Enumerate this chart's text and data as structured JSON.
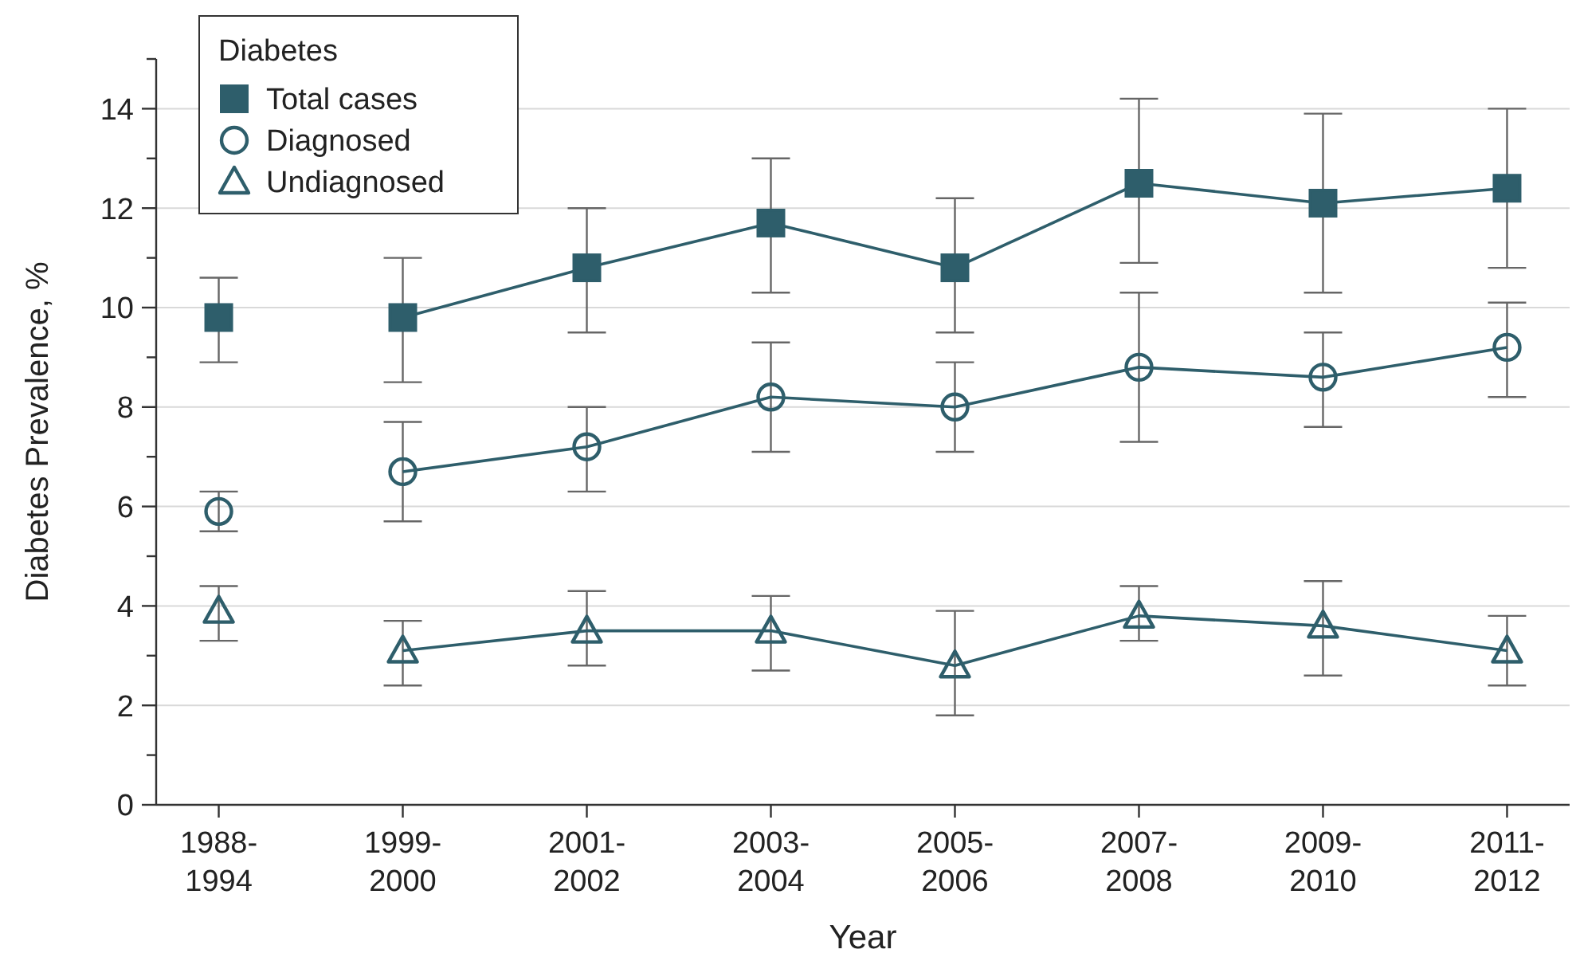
{
  "chart_data": {
    "type": "line",
    "xlabel": "Year",
    "ylabel": "Diabetes Prevalence, %",
    "legend_title": "Diabetes",
    "legend": "top left",
    "grid": "y",
    "categories": [
      "1988-\n1994",
      "1999-\n2000",
      "2001-\n2002",
      "2003-\n2004",
      "2005-\n2006",
      "2007-\n2008",
      "2009-\n2010",
      "2011-\n2012"
    ],
    "ylim": [
      0,
      15
    ],
    "yticks": [
      0,
      {
        "value": 1,
        "label": null
      },
      2,
      {
        "value": 3,
        "label": null
      },
      4,
      {
        "value": 5,
        "label": null
      },
      6,
      {
        "value": 7,
        "label": null
      },
      8,
      {
        "value": 9,
        "label": null
      },
      10,
      {
        "value": 11,
        "label": null
      },
      12,
      {
        "value": 13,
        "label": null
      },
      14,
      {
        "value": 15,
        "label": null
      }
    ],
    "series": [
      {
        "name": "Total cases",
        "color": "#2e5e6b",
        "marker": "square",
        "values": [
          null,
          9.8,
          10.8,
          11.7,
          10.8,
          12.5,
          12.1,
          12.4
        ],
        "errors": [
          null,
          [
            8.5,
            11.0
          ],
          [
            9.5,
            12.0
          ],
          [
            10.3,
            13.0
          ],
          [
            9.5,
            12.2
          ],
          [
            10.9,
            14.2
          ],
          [
            10.3,
            13.9
          ],
          [
            10.8,
            14.0
          ]
        ]
      },
      {
        "name": "Diagnosed",
        "color": "#2e5e6b",
        "marker": "circle",
        "values": [
          null,
          6.7,
          7.2,
          8.2,
          8.0,
          8.8,
          8.6,
          9.2
        ],
        "errors": [
          null,
          [
            5.7,
            7.7
          ],
          [
            6.3,
            8.0
          ],
          [
            7.1,
            9.3
          ],
          [
            7.1,
            8.9
          ],
          [
            7.3,
            10.3
          ],
          [
            7.6,
            9.5
          ],
          [
            8.2,
            10.1
          ]
        ]
      },
      {
        "name": "Undiagnosed",
        "color": "#2e5e6b",
        "marker": "triangle",
        "values": [
          null,
          3.1,
          3.5,
          3.5,
          2.8,
          3.8,
          3.6,
          3.1
        ],
        "errors": [
          null,
          [
            2.4,
            3.7
          ],
          [
            2.8,
            4.3
          ],
          [
            2.7,
            4.2
          ],
          [
            1.8,
            3.9
          ],
          [
            3.3,
            4.4
          ],
          [
            2.6,
            4.5
          ],
          [
            2.4,
            3.8
          ]
        ]
      },
      {
        "type": "scatter",
        "color": "#2e5e6b",
        "marker": "square",
        "values": [
          9.8,
          null,
          null,
          null,
          null,
          null,
          null,
          null
        ],
        "errors": [
          [
            8.9,
            10.6
          ],
          null,
          null,
          null,
          null,
          null,
          null,
          null
        ]
      },
      {
        "type": "scatter",
        "color": "#2e5e6b",
        "marker": "circle",
        "values": [
          5.9,
          null,
          null,
          null,
          null,
          null,
          null,
          null
        ],
        "errors": [
          [
            5.5,
            6.3
          ],
          null,
          null,
          null,
          null,
          null,
          null,
          null
        ]
      },
      {
        "type": "scatter",
        "color": "#2e5e6b",
        "marker": "triangle",
        "values": [
          3.9,
          null,
          null,
          null,
          null,
          null,
          null,
          null
        ],
        "errors": [
          [
            3.3,
            4.4
          ],
          null,
          null,
          null,
          null,
          null,
          null,
          null
        ]
      }
    ]
  }
}
